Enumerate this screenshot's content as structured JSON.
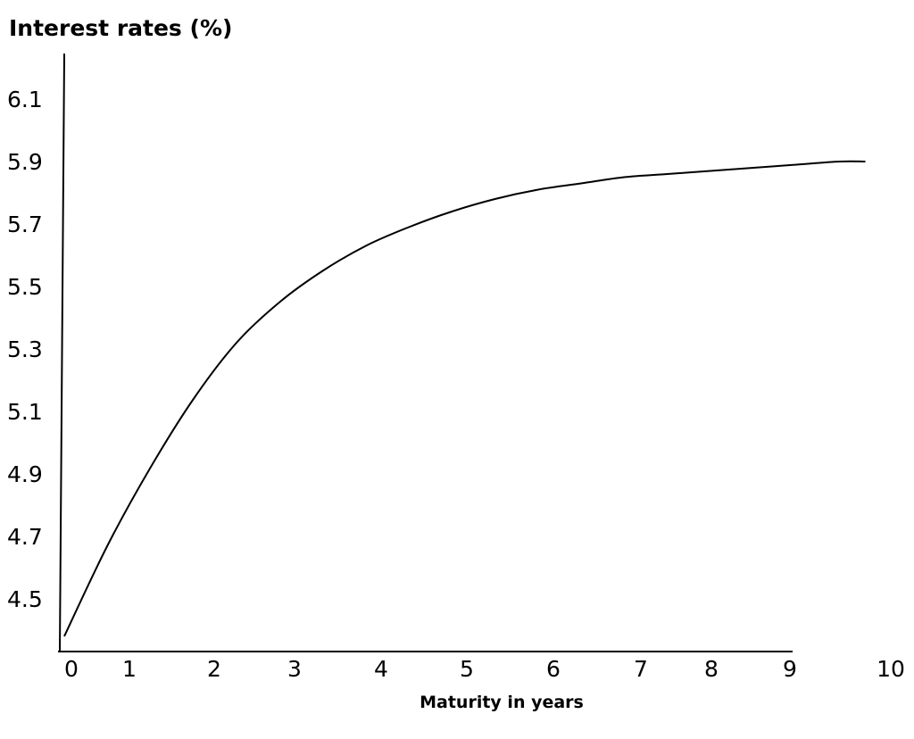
{
  "chart_data": {
    "type": "line",
    "title": "",
    "ylabel": "Interest rates (%)",
    "xlabel": "Maturity in years",
    "x_ticks": [
      "0",
      "1",
      "2",
      "3",
      "4",
      "5",
      "6",
      "7",
      "8",
      "9",
      "10"
    ],
    "y_ticks": [
      "4.5",
      "4.7",
      "4.9",
      "5.1",
      "5.3",
      "5.5",
      "5.7",
      "5.9",
      "6.1"
    ],
    "xlim": [
      0,
      10
    ],
    "ylim": [
      4.38,
      6.15
    ],
    "grid": false,
    "legend": "none",
    "series": [
      {
        "name": "",
        "color": "#000000",
        "x": [
          0,
          0.5,
          1,
          1.5,
          2,
          2.5,
          3,
          3.5,
          4,
          4.5,
          5,
          5.5,
          6,
          6.5,
          7,
          7.5,
          8,
          8.5,
          9,
          9.3
        ],
        "y": [
          4.38,
          4.67,
          4.92,
          5.14,
          5.32,
          5.45,
          5.55,
          5.63,
          5.69,
          5.74,
          5.78,
          5.81,
          5.83,
          5.85,
          5.86,
          5.87,
          5.88,
          5.89,
          5.9,
          5.9
        ]
      }
    ]
  }
}
